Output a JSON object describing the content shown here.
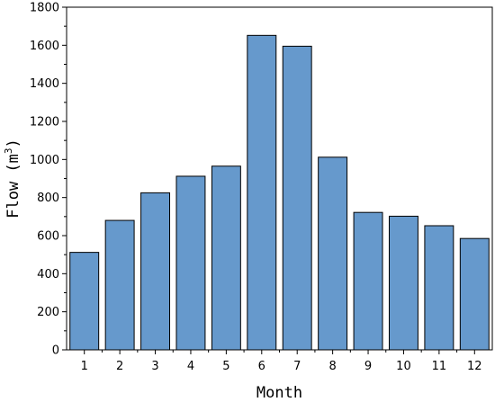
{
  "chart_data": {
    "type": "bar",
    "categories": [
      "1",
      "2",
      "3",
      "4",
      "5",
      "6",
      "7",
      "8",
      "9",
      "10",
      "11",
      "12"
    ],
    "values": [
      512,
      680,
      825,
      912,
      965,
      1652,
      1595,
      1012,
      722,
      702,
      652,
      585
    ],
    "xlabel": "Month",
    "ylabel": {
      "text": "Flow (m",
      "superscript": "3",
      "suffix": ")"
    },
    "ylim": [
      0,
      1800
    ],
    "yticks": [
      "0",
      "200",
      "400",
      "600",
      "800",
      "1000",
      "1200",
      "1400",
      "1600",
      "1800"
    ],
    "grid": false,
    "bar_color": "#6699cc",
    "bar_edge_color": "#000000"
  }
}
